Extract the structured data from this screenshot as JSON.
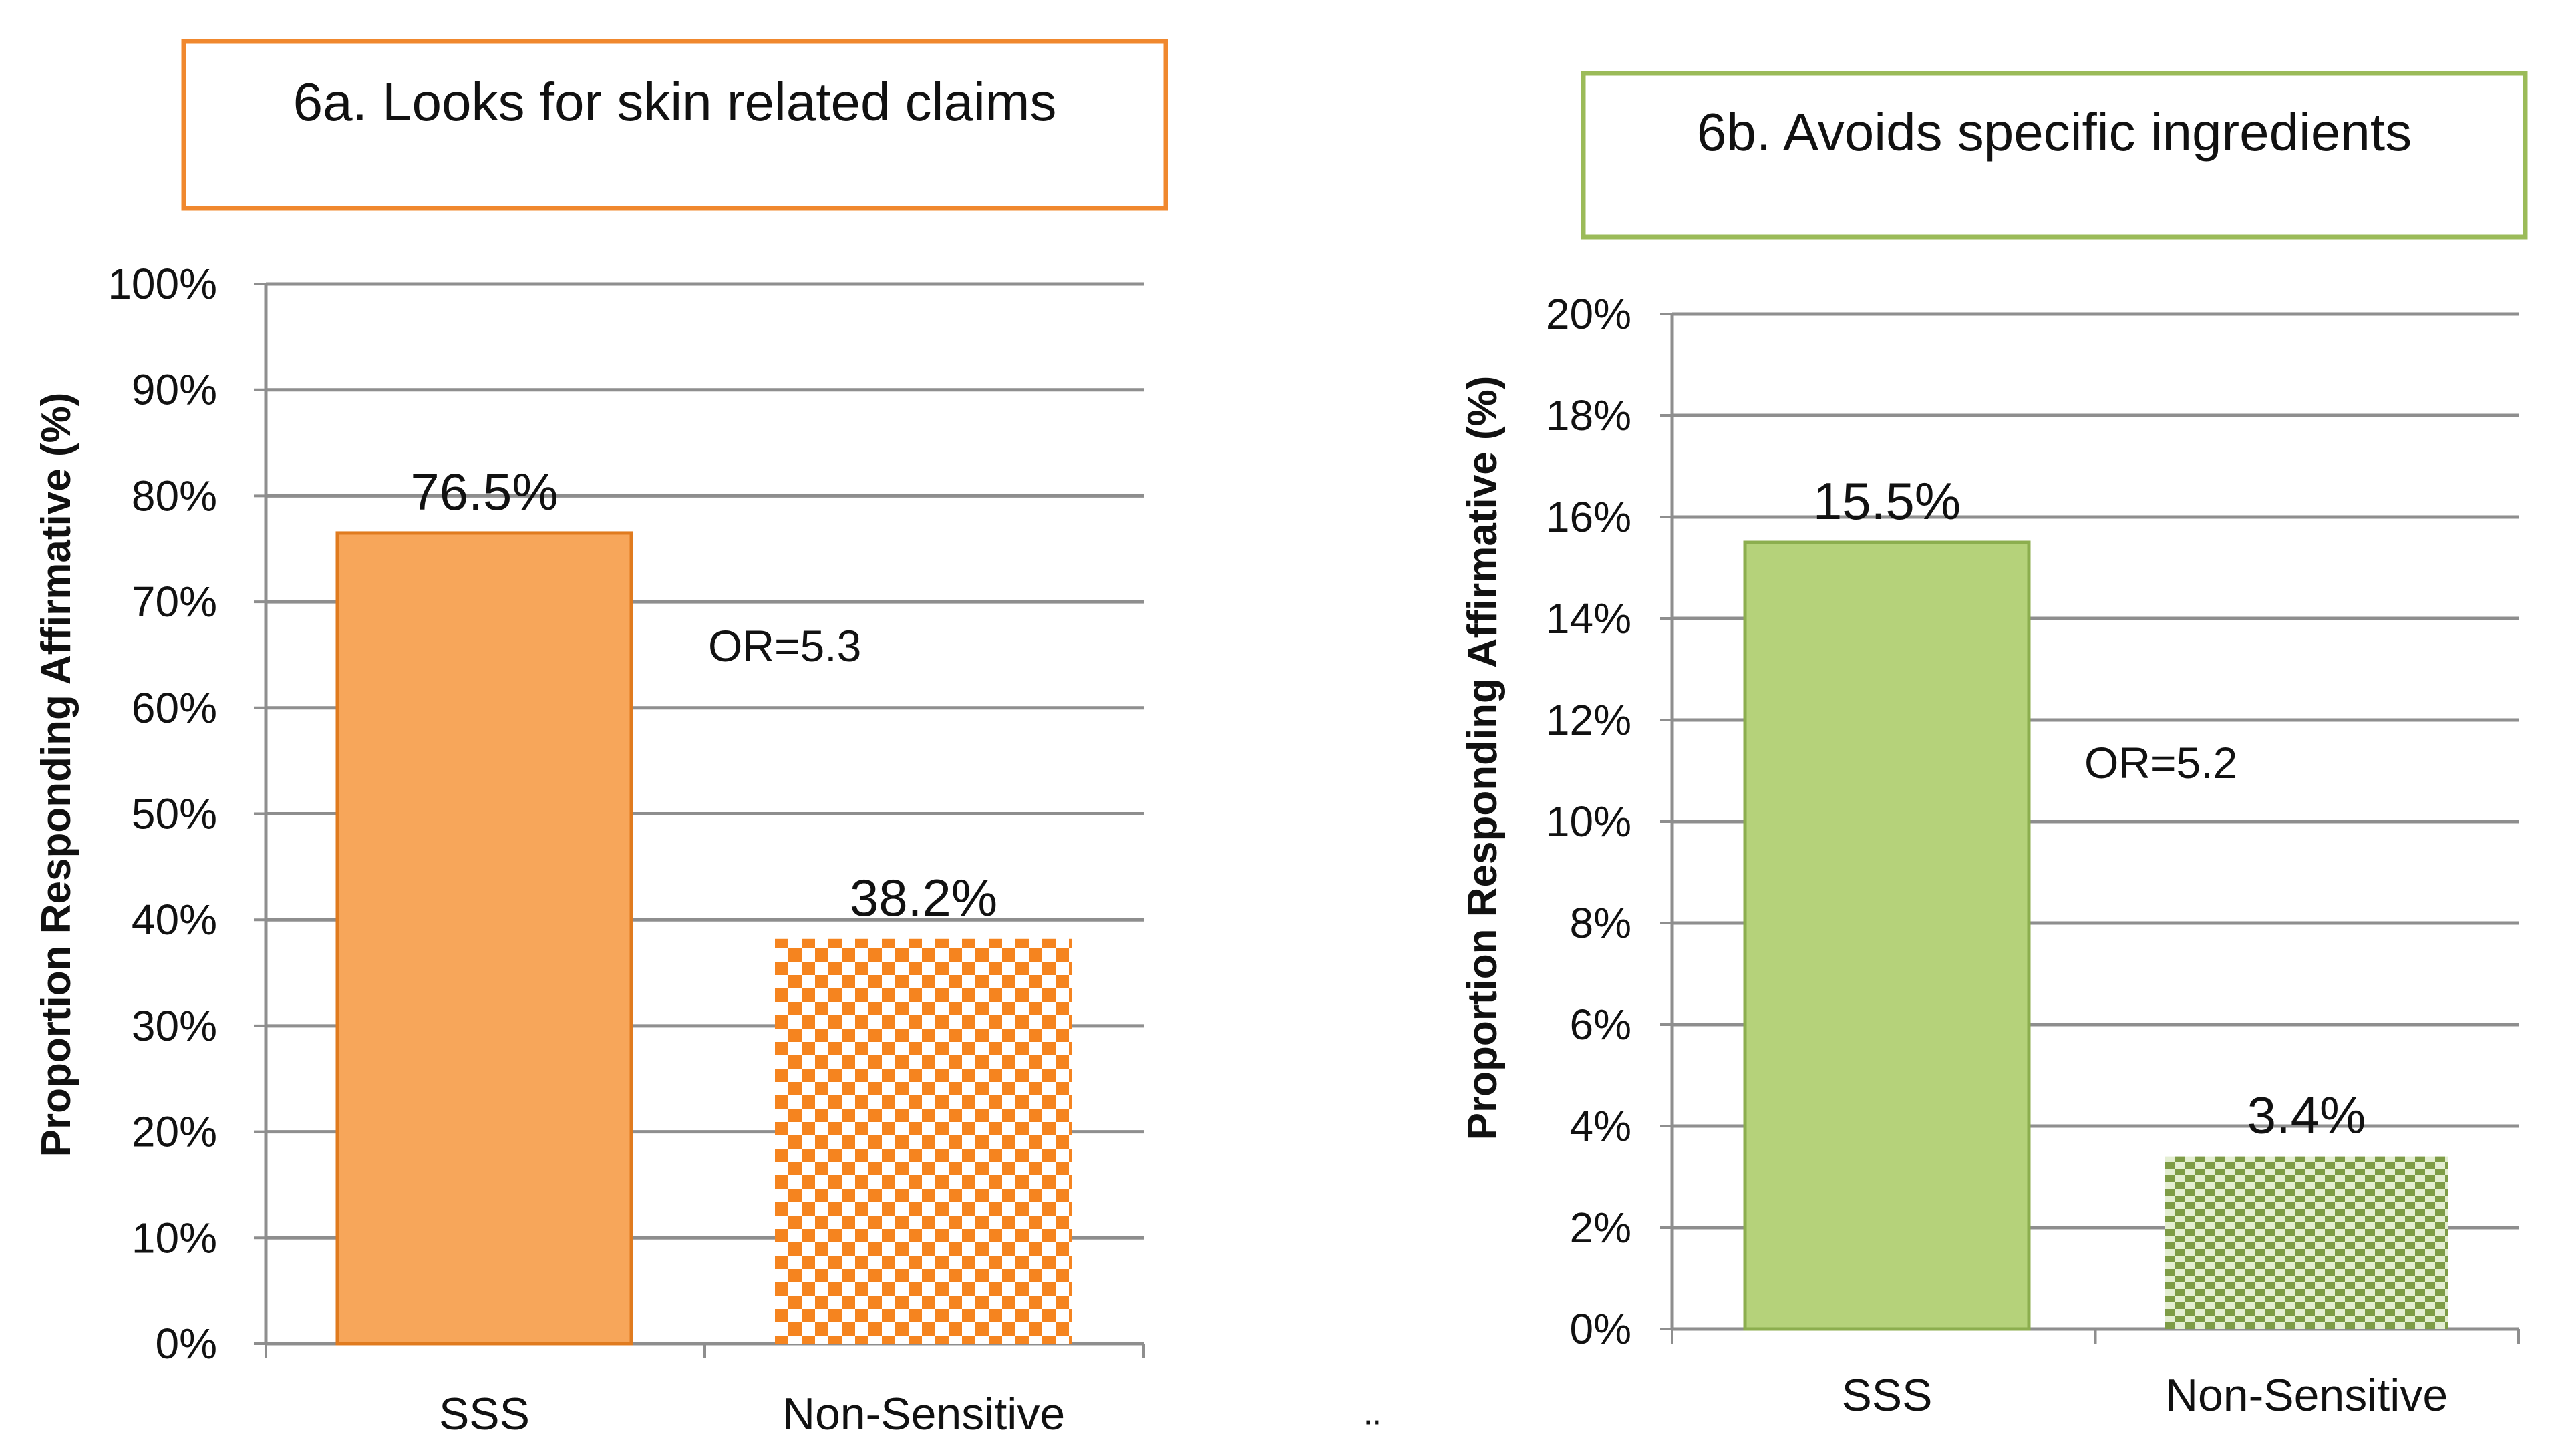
{
  "chart_data": [
    {
      "type": "bar",
      "title": "6a. Looks for skin related claims",
      "ylabel": "Proportion Responding Affirmative (%)",
      "xlabel": "",
      "categories": [
        "SSS",
        "Non-Sensitive"
      ],
      "values": [
        76.5,
        38.2
      ],
      "data_labels": [
        "76.5%",
        "38.2%"
      ],
      "ylim": [
        0,
        100
      ],
      "yticks": [
        0,
        10,
        20,
        30,
        40,
        50,
        60,
        70,
        80,
        90,
        100
      ],
      "ytick_labels": [
        "0%",
        "10%",
        "20%",
        "30%",
        "40%",
        "50%",
        "60%",
        "70%",
        "80%",
        "90%",
        "100%"
      ],
      "annotation": "OR=5.3",
      "grid": true,
      "colors": {
        "primary": "#F7A65A",
        "primary_edge": "#E07B1F",
        "pattern": "#F5841F",
        "title_border": "#F0882E"
      }
    },
    {
      "type": "bar",
      "title": "6b. Avoids specific ingredients",
      "ylabel": "Proportion Responding Affirmative (%)",
      "xlabel": "",
      "categories": [
        "SSS",
        "Non-Sensitive"
      ],
      "values": [
        15.5,
        3.4
      ],
      "data_labels": [
        "15.5%",
        "3.4%"
      ],
      "ylim": [
        0,
        20
      ],
      "yticks": [
        0,
        2,
        4,
        6,
        8,
        10,
        12,
        14,
        16,
        18,
        20
      ],
      "ytick_labels": [
        "0%",
        "2%",
        "4%",
        "6%",
        "8%",
        "10%",
        "12%",
        "14%",
        "16%",
        "18%",
        "20%"
      ],
      "annotation": "OR=5.2",
      "grid": true,
      "colors": {
        "primary": "#B5D27A",
        "primary_edge": "#8CAE4E",
        "pattern": "#7E9C46",
        "title_border": "#9BBB59"
      }
    }
  ],
  "stray_mark": "¨"
}
